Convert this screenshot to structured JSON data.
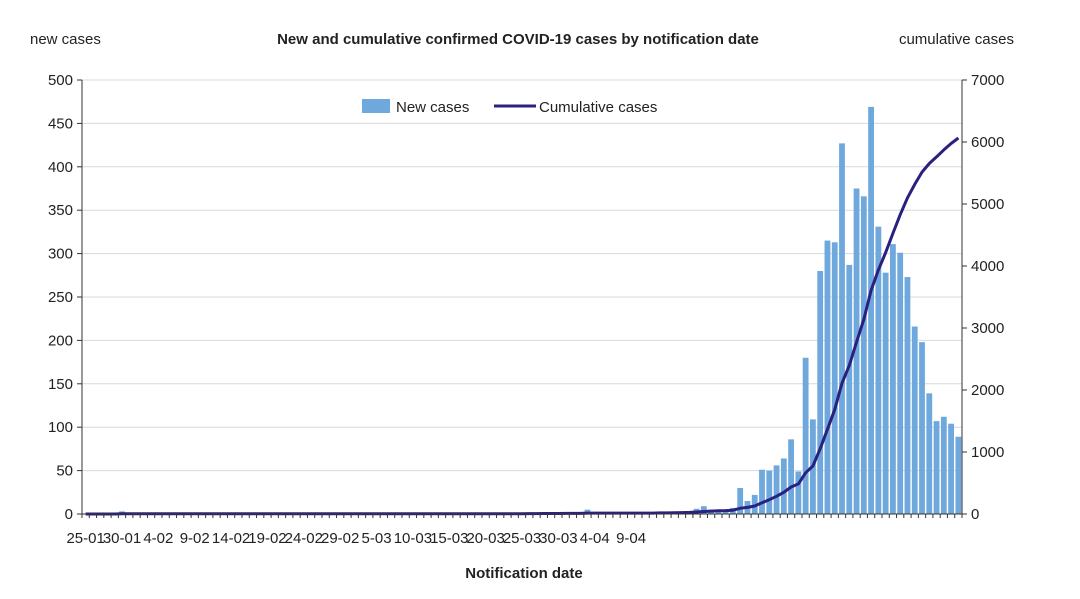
{
  "chart_data": {
    "type": "bar",
    "title": "New and cumulative confirmed COVID-19 cases by notification date",
    "xlabel": "Notification date",
    "ylabel_left": "new cases",
    "ylabel_right": "cumulative cases",
    "ylim_left": [
      0,
      500
    ],
    "yticks_left": [
      "0",
      "50",
      "100",
      "150",
      "200",
      "250",
      "300",
      "350",
      "400",
      "450",
      "500"
    ],
    "ylim_right": [
      0,
      7000
    ],
    "yticks_right": [
      "0",
      "1000",
      "2000",
      "3000",
      "4000",
      "5000",
      "6000",
      "7000"
    ],
    "grid": true,
    "legend_position": "top-center",
    "x_tick_labels": [
      "25-01",
      "30-01",
      "4-02",
      "9-02",
      "14-02",
      "19-02",
      "24-02",
      "29-02",
      "5-03",
      "10-03",
      "15-03",
      "20-03",
      "25-03",
      "30-03",
      "4-04",
      "9-04"
    ],
    "x_tick_every": 5,
    "series": [
      {
        "name": "New cases",
        "type": "bar",
        "color": "#6fa8dc",
        "axis": "left",
        "values": [
          0,
          0,
          0,
          0,
          0,
          3,
          0,
          0,
          0,
          0,
          0,
          0,
          0,
          0,
          0,
          0,
          0,
          0,
          0,
          0,
          0,
          0,
          0,
          0,
          0,
          0,
          0,
          0,
          0,
          0,
          0,
          0,
          0,
          0,
          0,
          0,
          0,
          0,
          0,
          0,
          0,
          1,
          0,
          0,
          0,
          0,
          0,
          0,
          0,
          0,
          0,
          0,
          0,
          0,
          0,
          0,
          0,
          0,
          0,
          0,
          1,
          1,
          0,
          2,
          0,
          0,
          1,
          0,
          0,
          5,
          0,
          0,
          0,
          0,
          0,
          0,
          0,
          0,
          1,
          2,
          0,
          3,
          3,
          3,
          6,
          9,
          5,
          5,
          4,
          7,
          30,
          15,
          22,
          51,
          50,
          56,
          64,
          86,
          49,
          180,
          109,
          280,
          315,
          313,
          427,
          287,
          375,
          366,
          469,
          331,
          278,
          311,
          301,
          273,
          216,
          198,
          139,
          107,
          112,
          104,
          89
        ]
      },
      {
        "name": "Cumulative cases",
        "type": "line",
        "color": "#2a2080",
        "axis": "right",
        "values": [
          0,
          0,
          0,
          0,
          0,
          3,
          3,
          3,
          3,
          3,
          3,
          3,
          3,
          3,
          3,
          3,
          3,
          3,
          3,
          3,
          3,
          3,
          3,
          3,
          3,
          3,
          3,
          3,
          3,
          3,
          3,
          3,
          3,
          3,
          3,
          3,
          3,
          3,
          3,
          3,
          3,
          4,
          4,
          4,
          4,
          4,
          4,
          4,
          4,
          4,
          4,
          4,
          4,
          4,
          4,
          4,
          4,
          4,
          4,
          4,
          5,
          6,
          6,
          8,
          8,
          8,
          9,
          9,
          9,
          14,
          14,
          14,
          14,
          14,
          14,
          14,
          14,
          14,
          15,
          17,
          17,
          20,
          23,
          26,
          32,
          41,
          46,
          51,
          55,
          62,
          92,
          107,
          129,
          180,
          230,
          286,
          350,
          436,
          485,
          665,
          774,
          1054,
          1369,
          1682,
          2109,
          2396,
          2771,
          3137,
          3606,
          3937,
          4215,
          4526,
          4827,
          5100,
          5316,
          5514,
          5653,
          5760,
          5872,
          5976,
          6065
        ]
      }
    ]
  }
}
